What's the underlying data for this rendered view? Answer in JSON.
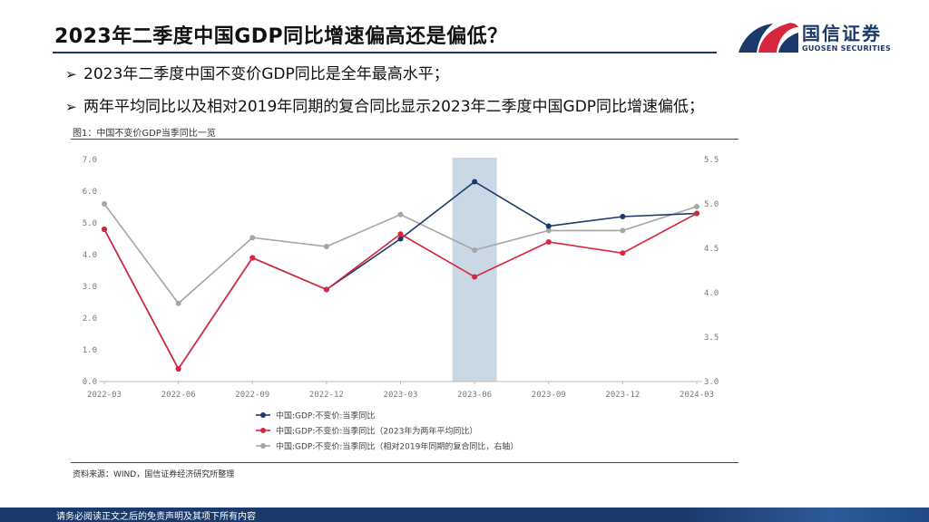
{
  "header": {
    "title": "2023年二季度中国GDP同比增速偏高还是偏低？"
  },
  "logo": {
    "name_cn": "国信证券",
    "name_en": "GUOSEN SECURITIES",
    "colors": {
      "blue": "#1b3a6b",
      "red": "#d7263d"
    }
  },
  "bullets": [
    "2023年二季度中国不变价GDP同比是全年最高水平；",
    "两年平均同比以及相对2019年同期的复合同比显示2023年二季度中国GDP同比增速偏低；"
  ],
  "figure": {
    "caption": "图1：中国不变价GDP当季同比一览",
    "source": "资料来源：WIND，国信证券经济研究所整理"
  },
  "footer": {
    "disclaimer": "请务必阅读正文之后的免责声明及其项下所有内容"
  },
  "chart_data": {
    "type": "line",
    "categories": [
      "2022-03",
      "2022-06",
      "2022-09",
      "2022-12",
      "2023-03",
      "2023-06",
      "2023-09",
      "2023-12",
      "2024-03"
    ],
    "highlight_category": "2023-06",
    "highlight_color": "#c9d8e4",
    "ylim_left": [
      0,
      7
    ],
    "yticks_left": [
      "0.0",
      "1.0",
      "2.0",
      "3.0",
      "4.0",
      "5.0",
      "6.0",
      "7.0"
    ],
    "ylim_right": [
      3.0,
      5.5
    ],
    "yticks_right": [
      "3.0",
      "3.5",
      "4.0",
      "4.5",
      "5.0",
      "5.5"
    ],
    "grid": false,
    "legend_position": "bottom",
    "series": [
      {
        "name": "中国:GDP:不变价:当季同比",
        "axis": "left",
        "color": "#1b3a6b",
        "values": [
          4.8,
          0.4,
          3.9,
          2.9,
          4.5,
          6.3,
          4.9,
          5.2,
          5.3
        ]
      },
      {
        "name": "中国:GDP:不变价:当季同比（2023年为两年平均同比）",
        "axis": "left",
        "color": "#d7263d",
        "values": [
          4.8,
          0.4,
          3.9,
          2.9,
          4.65,
          3.3,
          4.4,
          4.05,
          5.3
        ]
      },
      {
        "name": "中国:GDP:不变价:当季同比（相对2019年同期的复合同比，右轴）",
        "axis": "right",
        "color": "#a6a6a6",
        "values": [
          5.0,
          3.88,
          4.62,
          4.52,
          4.88,
          4.48,
          4.7,
          4.7,
          4.97
        ]
      }
    ]
  }
}
